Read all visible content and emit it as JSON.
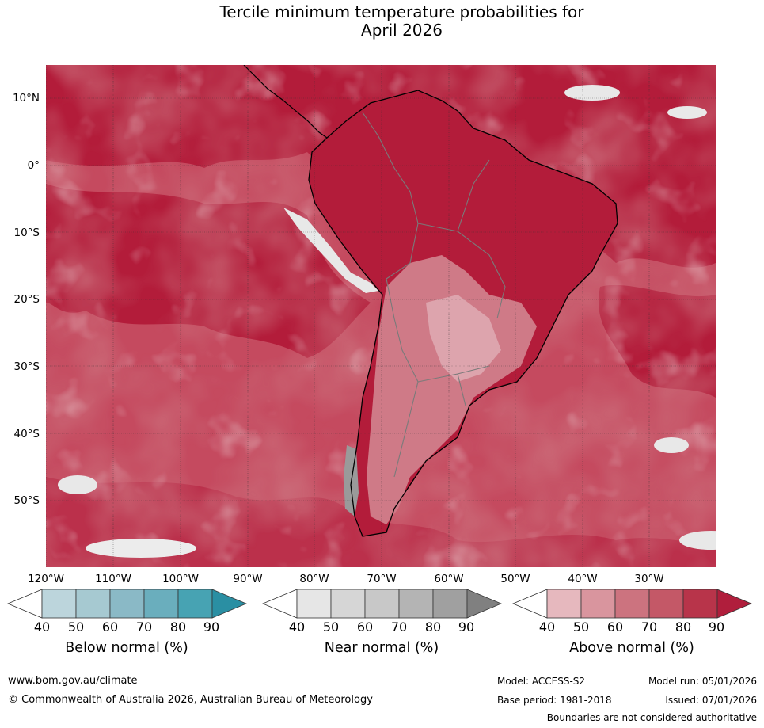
{
  "title": {
    "line1": "Tercile minimum temperature probabilities for",
    "line2": "April 2026"
  },
  "map": {
    "lat_labels": [
      "10°N",
      "0°",
      "10°S",
      "20°S",
      "30°S",
      "40°S",
      "50°S"
    ],
    "lon_labels": [
      "120°W",
      "110°W",
      "100°W",
      "90°W",
      "80°W",
      "70°W",
      "60°W",
      "50°W",
      "40°W",
      "30°W"
    ]
  },
  "colorbars": {
    "below": {
      "title": "Below normal (%)",
      "ticks": [
        "40",
        "50",
        "60",
        "70",
        "80",
        "90"
      ],
      "colors": [
        "#ffffff",
        "#bcd5dc",
        "#a6c9d1",
        "#8ab9c6",
        "#6aaebd",
        "#47a3b3",
        "#2a8fa3"
      ]
    },
    "near": {
      "title": "Near normal (%)",
      "ticks": [
        "40",
        "50",
        "60",
        "70",
        "80",
        "90"
      ],
      "colors": [
        "#ffffff",
        "#e6e6e6",
        "#d6d6d6",
        "#c8c8c8",
        "#b4b4b4",
        "#a0a0a0",
        "#808080"
      ]
    },
    "above": {
      "title": "Above normal (%)",
      "ticks": [
        "40",
        "50",
        "60",
        "70",
        "80",
        "90"
      ],
      "colors": [
        "#ffffff",
        "#e6b8be",
        "#d9959e",
        "#cc737f",
        "#c45867",
        "#b8344a",
        "#b01e3c"
      ]
    }
  },
  "footer": {
    "url": "www.bom.gov.au/climate",
    "copyright": "© Commonwealth of Australia 2026, Australian Bureau of Meteorology",
    "model": "Model: ACCESS-S2",
    "base_period": "Base period: 1981-2018",
    "model_run": "Model run: 05/01/2026",
    "issued": "Issued: 07/01/2026",
    "disclaimer": "Boundaries are not considered authoritative"
  }
}
